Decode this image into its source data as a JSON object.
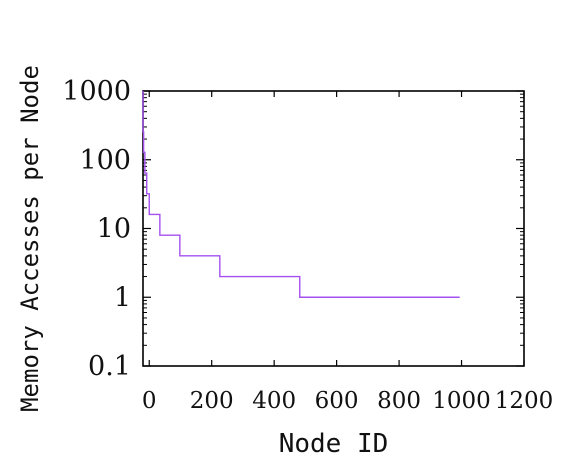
{
  "chart_data": {
    "type": "line",
    "title": "",
    "xlabel": "Node ID",
    "ylabel": "Memory Accesses per Node",
    "xlim": [
      -20,
      1200
    ],
    "ylim": [
      0.1,
      1000
    ],
    "y_scale": "log",
    "x_ticks": [
      {
        "value": 0,
        "label": "0"
      },
      {
        "value": 200,
        "label": "200"
      },
      {
        "value": 400,
        "label": "400"
      },
      {
        "value": 600,
        "label": "600"
      },
      {
        "value": 800,
        "label": "800"
      },
      {
        "value": 1000,
        "label": "1000"
      },
      {
        "value": 1200,
        "label": "1200"
      }
    ],
    "y_ticks": [
      {
        "value": 0.1,
        "label": "0.1"
      },
      {
        "value": 1,
        "label": "1"
      },
      {
        "value": 10,
        "label": "10"
      },
      {
        "value": 100,
        "label": "100"
      },
      {
        "value": 1000,
        "label": "1000"
      }
    ],
    "grid": false,
    "legend": "none",
    "series": [
      {
        "color": "#a64ff0",
        "x": [
          -20,
          -20,
          -18,
          -18,
          -14,
          -14,
          -8,
          -8,
          0,
          0,
          12,
          12,
          34,
          34,
          98,
          98,
          226,
          226,
          482,
          482,
          994
        ],
        "y": [
          1000,
          256,
          256,
          128,
          128,
          64,
          64,
          32,
          32,
          16,
          16,
          16,
          16,
          8,
          8,
          4,
          4,
          2,
          2,
          1,
          1
        ],
        "step": "post"
      }
    ]
  }
}
